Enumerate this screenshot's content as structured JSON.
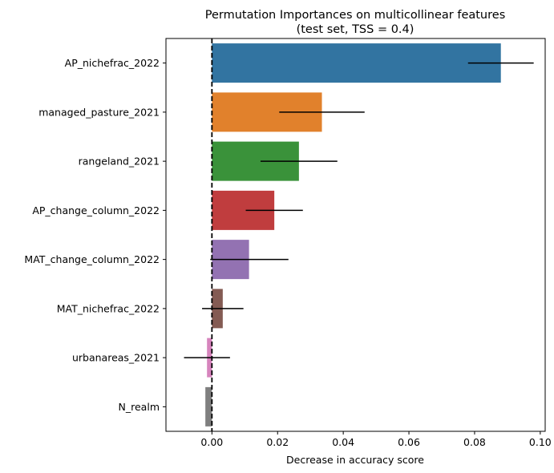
{
  "chart_data": {
    "type": "bar",
    "orientation": "horizontal",
    "title": "Permutation Importances on multicollinear features",
    "subtitle": "(test set, TSS = 0.4)",
    "xlabel": "Decrease in accuracy score",
    "ylabel": "",
    "xlim": [
      -0.014,
      0.1015
    ],
    "xticks": [
      0.0,
      0.02,
      0.04,
      0.06,
      0.08,
      0.1
    ],
    "xtick_labels": [
      "0.00",
      "0.02",
      "0.04",
      "0.06",
      "0.08",
      "0.10"
    ],
    "grid": false,
    "reference_line": {
      "x": 0,
      "style": "dashed",
      "color": "#000000"
    },
    "categories": [
      "AP_nichefrac_2022",
      "managed_pasture_2021",
      "rangeland_2021",
      "AP_change_column_2022",
      "MAT_change_column_2022",
      "MAT_nichefrac_2022",
      "urbanareas_2021",
      "N_realm"
    ],
    "values": [
      0.088,
      0.0335,
      0.0265,
      0.019,
      0.0113,
      0.0033,
      -0.0015,
      -0.002
    ],
    "error_low": [
      0.078,
      0.0205,
      0.0148,
      0.0103,
      -0.0005,
      -0.003,
      -0.0085,
      null
    ],
    "error_high": [
      0.098,
      0.0465,
      0.0382,
      0.0277,
      0.0233,
      0.0096,
      0.0055,
      null
    ],
    "colors": [
      "#3274a1",
      "#e1812c",
      "#3a923a",
      "#c03d3e",
      "#9372b2",
      "#845b53",
      "#d684bd",
      "#7f7f7f"
    ]
  }
}
